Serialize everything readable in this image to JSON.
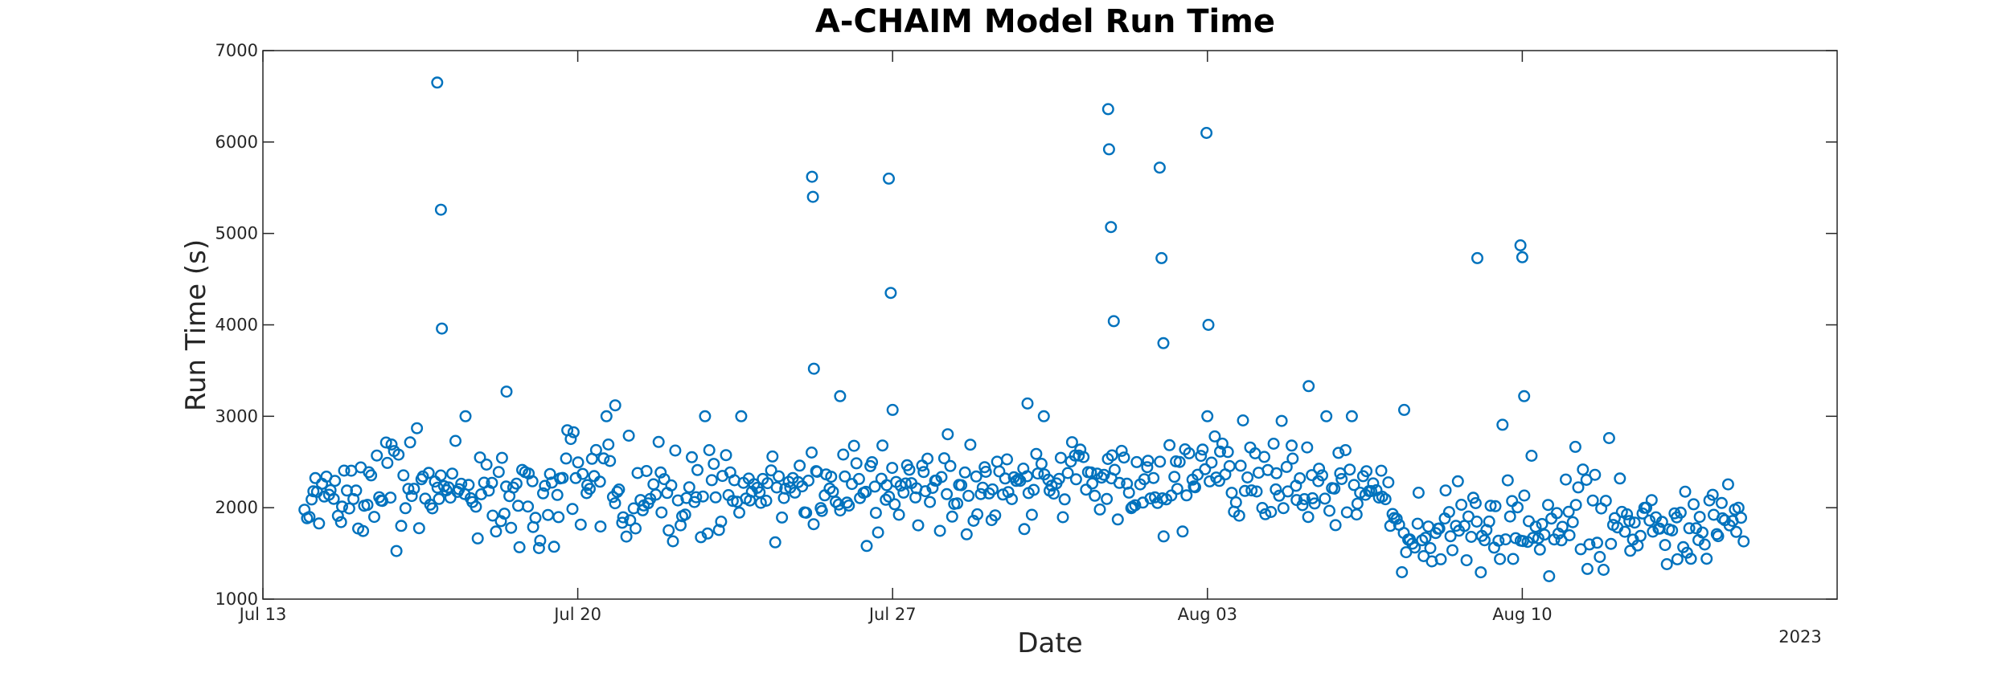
{
  "colors": {
    "marker": "#0072BD",
    "axis": "#262626",
    "background": "#ffffff"
  },
  "chart_data": {
    "type": "scatter",
    "title": "A-CHAIM Model Run Time",
    "xlabel": "Date",
    "ylabel": "Run Time (s)",
    "x_year_label": "2023",
    "x_axis_type": "date",
    "xlim": [
      "2023-07-13",
      "2023-08-17"
    ],
    "ylim": [
      1000,
      7000
    ],
    "xticks": [
      {
        "date": "2023-07-13",
        "label": "Jul 13"
      },
      {
        "date": "2023-07-20",
        "label": "Jul 20"
      },
      {
        "date": "2023-07-27",
        "label": "Jul 27"
      },
      {
        "date": "2023-08-03",
        "label": "Aug 03"
      },
      {
        "date": "2023-08-10",
        "label": "Aug 10"
      }
    ],
    "yticks": [
      1000,
      2000,
      3000,
      4000,
      5000,
      6000,
      7000
    ],
    "marker": "open-circle",
    "grid": false,
    "notable_points": [
      {
        "x": "2023-07-16 21:00",
        "y": 6650
      },
      {
        "x": "2023-07-16 23:00",
        "y": 5260
      },
      {
        "x": "2023-07-16 23:30",
        "y": 3960
      },
      {
        "x": "2023-07-25 05:00",
        "y": 5620
      },
      {
        "x": "2023-07-25 05:30",
        "y": 5400
      },
      {
        "x": "2023-07-25 06:00",
        "y": 3520
      },
      {
        "x": "2023-07-26 22:00",
        "y": 5600
      },
      {
        "x": "2023-07-26 23:00",
        "y": 4350
      },
      {
        "x": "2023-07-27 00:00",
        "y": 3070
      },
      {
        "x": "2023-07-31 19:00",
        "y": 6360
      },
      {
        "x": "2023-07-31 19:30",
        "y": 5920
      },
      {
        "x": "2023-07-31 20:30",
        "y": 5070
      },
      {
        "x": "2023-07-31 22:00",
        "y": 4040
      },
      {
        "x": "2023-08-01 22:30",
        "y": 5720
      },
      {
        "x": "2023-08-01 23:30",
        "y": 4730
      },
      {
        "x": "2023-08-02 00:30",
        "y": 3800
      },
      {
        "x": "2023-08-02 23:30",
        "y": 6100
      },
      {
        "x": "2023-08-03 00:30",
        "y": 4000
      },
      {
        "x": "2023-08-09 00:00",
        "y": 4730
      },
      {
        "x": "2023-08-09 23:00",
        "y": 4870
      },
      {
        "x": "2023-08-10 00:00",
        "y": 4740
      },
      {
        "x": "2023-08-10 01:00",
        "y": 3220
      },
      {
        "x": "2023-08-05 06:00",
        "y": 3330
      },
      {
        "x": "2023-07-18 10:00",
        "y": 3270
      },
      {
        "x": "2023-07-20 20:00",
        "y": 3120
      },
      {
        "x": "2023-07-30 00:00",
        "y": 3140
      },
      {
        "x": "2023-08-07 09:00",
        "y": 3070
      },
      {
        "x": "2023-07-25 20:00",
        "y": 3220
      }
    ],
    "bulk_series": {
      "start": "2023-07-13 22:00",
      "end": "2023-08-14 22:00",
      "count": 640,
      "segments": [
        {
          "from": "2023-07-13",
          "to": "2023-07-20",
          "center": 2150,
          "spread": 450
        },
        {
          "from": "2023-07-20",
          "to": "2023-07-27",
          "center": 2180,
          "spread": 450
        },
        {
          "from": "2023-07-27",
          "to": "2023-08-03",
          "center": 2250,
          "spread": 400
        },
        {
          "from": "2023-08-03",
          "to": "2023-08-07",
          "center": 2250,
          "spread": 420
        },
        {
          "from": "2023-08-07",
          "to": "2023-08-15",
          "center": 1800,
          "spread": 430
        }
      ]
    }
  }
}
